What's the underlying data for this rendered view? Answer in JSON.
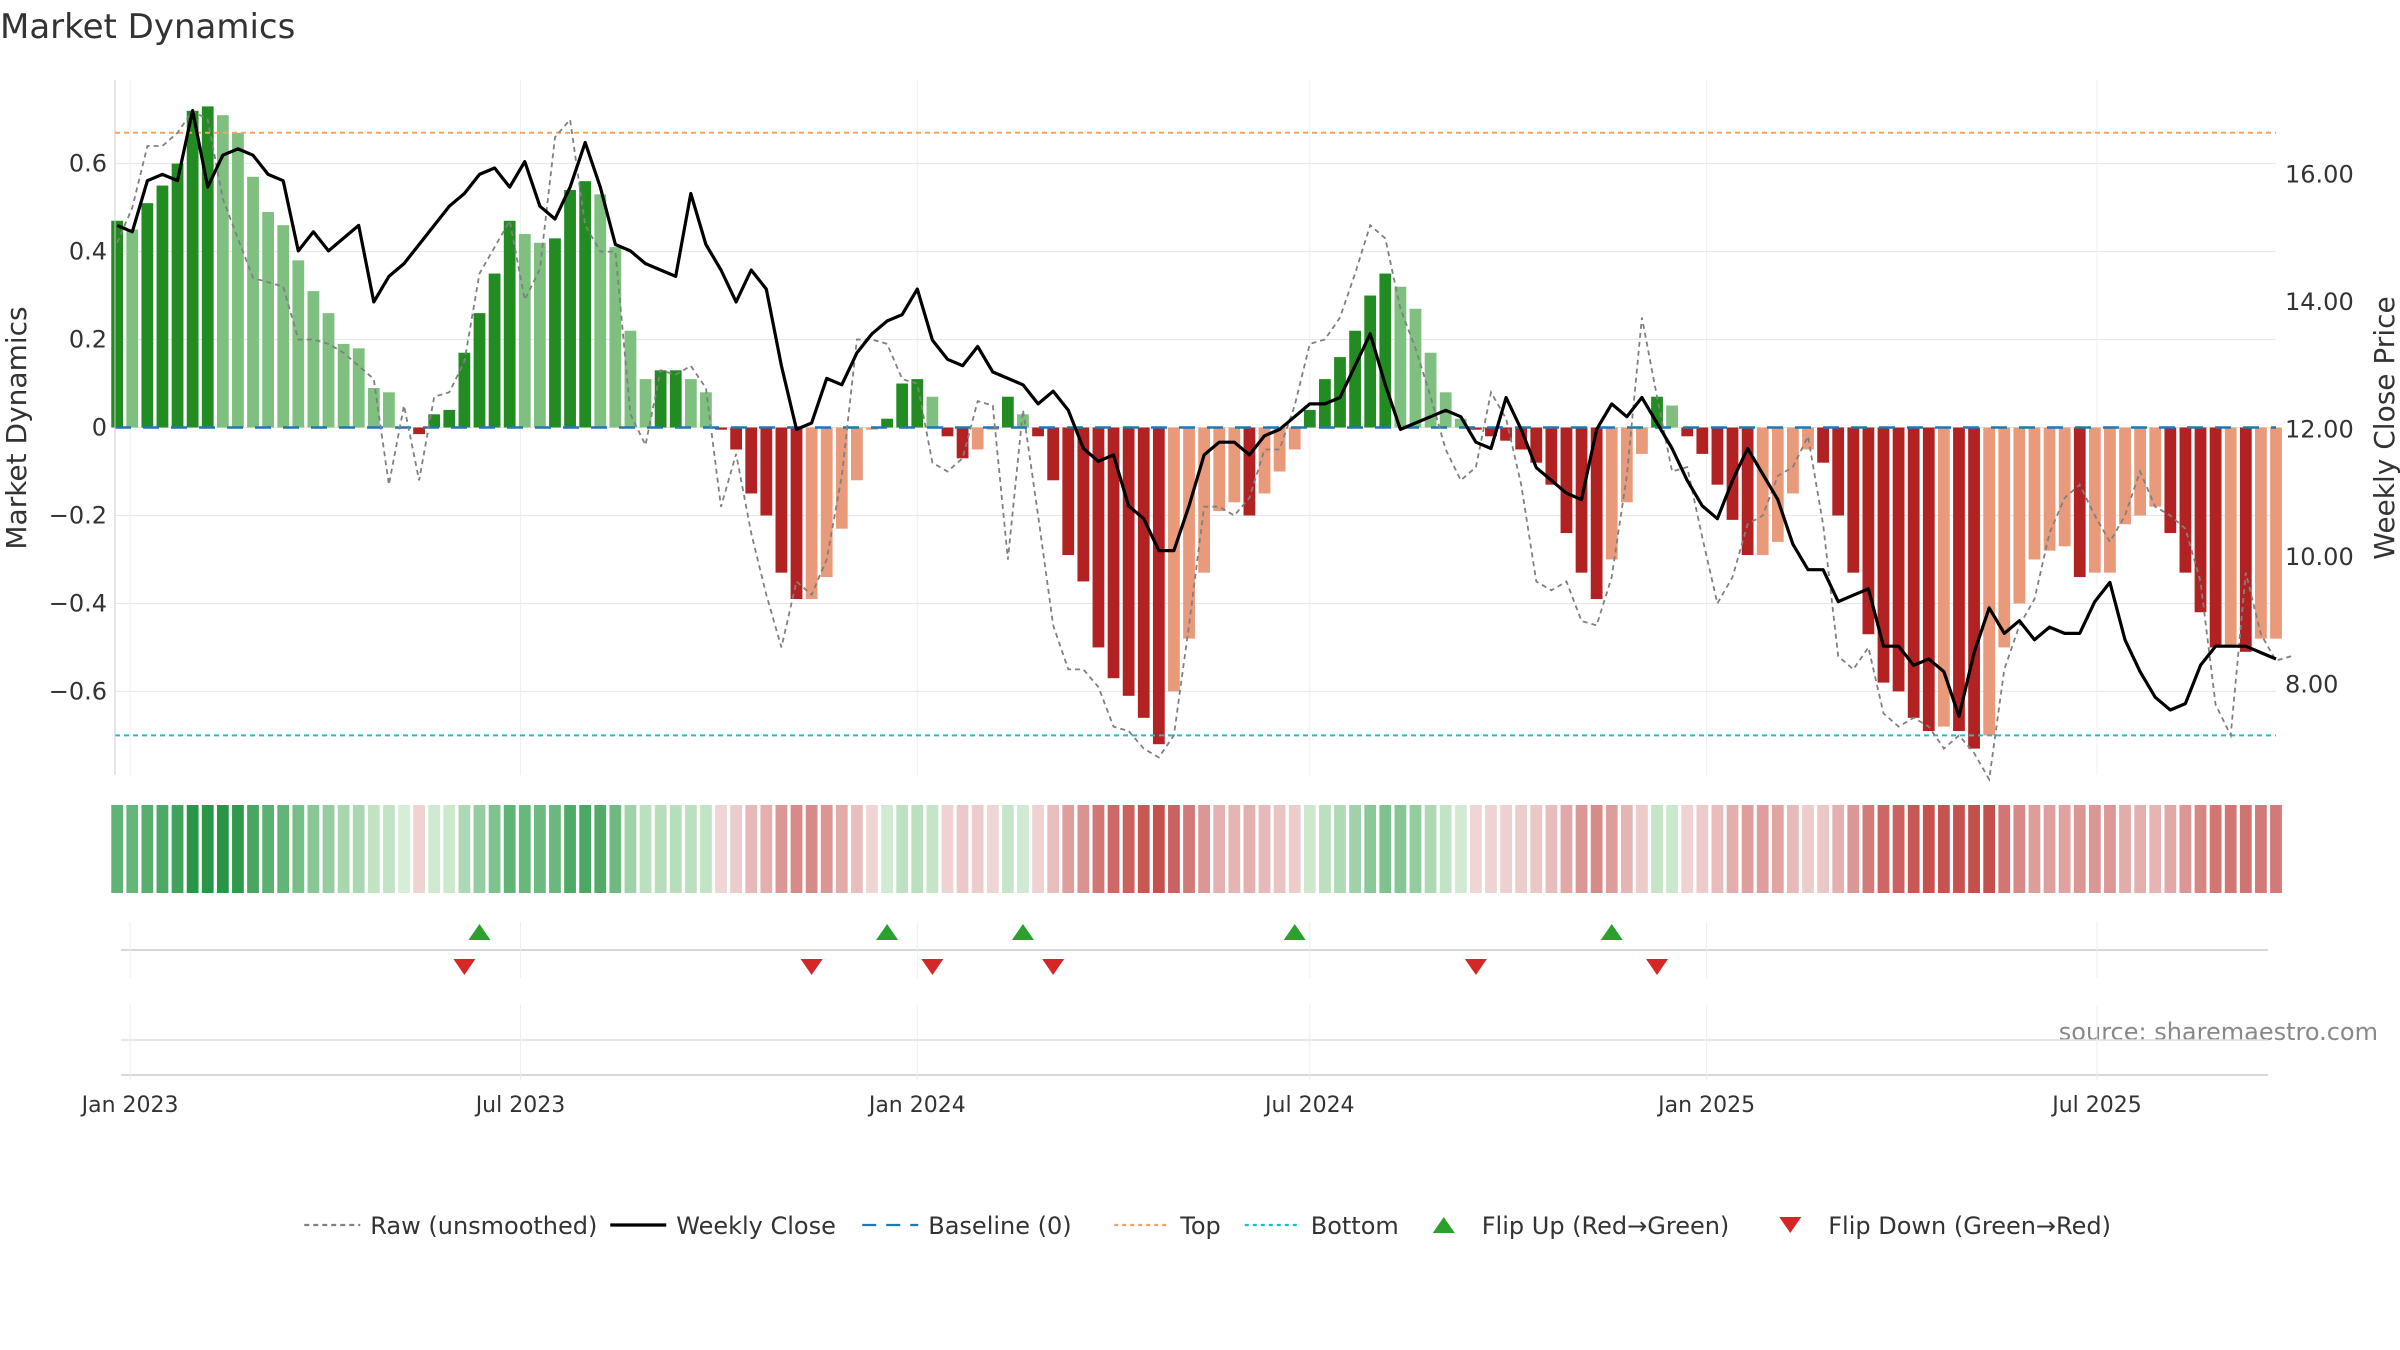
{
  "chart_data": {
    "type": "bar",
    "title": "Market Dynamics",
    "ylabel": "Market Dynamics",
    "y2label": "Weekly Close Price",
    "ylim": [
      -0.79,
      0.79
    ],
    "y2lim": [
      6.58,
      17.48
    ],
    "yticks": [
      -0.6,
      -0.4,
      -0.2,
      0,
      0.2,
      0.4,
      0.6
    ],
    "ytick_labels": [
      "−0.6",
      "−0.4",
      "−0.2",
      "0",
      "0.2",
      "0.4",
      "0.6"
    ],
    "y2ticks": [
      8,
      10,
      12,
      14,
      16
    ],
    "y2tick_labels": [
      "8.00",
      "10.00",
      "12.00",
      "14.00",
      "16.00"
    ],
    "xlim": [
      "2022-12-25",
      "2025-09-22"
    ],
    "xticks": [
      "2023-01-01",
      "2023-07-01",
      "2024-01-01",
      "2024-07-01",
      "2025-01-01",
      "2025-07-01"
    ],
    "xtick_labels": [
      "Jan 2023",
      "Jul 2023",
      "Jan 2024",
      "Jul 2024",
      "Jan 2025",
      "Jul 2025"
    ],
    "start_date": "2022-12-26",
    "top_line": 0.67,
    "bottom_line": -0.7,
    "baseline": 0,
    "grid": true,
    "legend_position": "bottom",
    "source": "source: sharemaestro.com",
    "colors": {
      "strong_up": "#228b22",
      "weak_up": "#7fbf7f",
      "strong_down": "#b22222",
      "weak_down": "#e89a7a",
      "raw_line": "#808080",
      "close_line": "#000000",
      "baseline": "#1f77b4",
      "top": "#f4a460",
      "bottom": "#20c0c0",
      "flip_up": "#2ca02c",
      "flip_down": "#d62728"
    },
    "dynamics": [
      0.47,
      0.45,
      0.51,
      0.55,
      0.6,
      0.72,
      0.73,
      0.71,
      0.67,
      0.57,
      0.49,
      0.46,
      0.38,
      0.31,
      0.26,
      0.19,
      0.18,
      0.09,
      0.08,
      0,
      -0.015,
      0.03,
      0.04,
      0.17,
      0.26,
      0.35,
      0.47,
      0.44,
      0.42,
      0.43,
      0.54,
      0.56,
      0.53,
      0.41,
      0.22,
      0.11,
      0.13,
      0.13,
      0.11,
      0.08,
      -0.005,
      -0.05,
      -0.15,
      -0.2,
      -0.33,
      -0.39,
      -0.39,
      -0.34,
      -0.23,
      -0.12,
      -0.005,
      0.02,
      0.1,
      0.11,
      0.07,
      -0.02,
      -0.07,
      -0.05,
      -0.005,
      0.07,
      0.03,
      -0.02,
      -0.12,
      -0.29,
      -0.35,
      -0.5,
      -0.57,
      -0.61,
      -0.66,
      -0.72,
      -0.6,
      -0.48,
      -0.33,
      -0.19,
      -0.17,
      -0.2,
      -0.15,
      -0.1,
      -0.05,
      0.04,
      0.11,
      0.16,
      0.22,
      0.3,
      0.35,
      0.32,
      0.27,
      0.17,
      0.08,
      0.02,
      -0.005,
      -0.02,
      -0.03,
      -0.05,
      -0.08,
      -0.13,
      -0.24,
      -0.33,
      -0.39,
      -0.3,
      -0.17,
      -0.06,
      0.07,
      0.05,
      -0.02,
      -0.06,
      -0.13,
      -0.21,
      -0.29,
      -0.29,
      -0.26,
      -0.15,
      -0.05,
      -0.08,
      -0.2,
      -0.33,
      -0.47,
      -0.58,
      -0.6,
      -0.66,
      -0.69,
      -0.68,
      -0.69,
      -0.73,
      -0.7,
      -0.5,
      -0.4,
      -0.3,
      -0.28,
      -0.27,
      -0.34,
      -0.33,
      -0.33,
      -0.22,
      -0.2,
      -0.18,
      -0.24,
      -0.33,
      -0.42,
      -0.5,
      -0.5,
      -0.51,
      -0.48,
      -0.48
    ],
    "raw": [
      0.42,
      0.5,
      0.64,
      0.64,
      0.67,
      0.72,
      0.7,
      0.52,
      0.43,
      0.34,
      0.33,
      0.32,
      0.2,
      0.2,
      0.19,
      0.17,
      0.14,
      0.11,
      -0.13,
      0.05,
      -0.12,
      0.07,
      0.08,
      0.15,
      0.35,
      0.41,
      0.47,
      0.29,
      0.36,
      0.66,
      0.7,
      0.46,
      0.4,
      0.4,
      0.03,
      -0.04,
      0.13,
      0.12,
      0.14,
      0.09,
      -0.18,
      -0.06,
      -0.24,
      -0.38,
      -0.5,
      -0.35,
      -0.38,
      -0.3,
      -0.11,
      0.2,
      0.2,
      0.19,
      0.11,
      0.1,
      -0.08,
      -0.1,
      -0.07,
      0.06,
      0.05,
      -0.3,
      0.04,
      -0.2,
      -0.45,
      -0.55,
      -0.55,
      -0.59,
      -0.68,
      -0.69,
      -0.73,
      -0.75,
      -0.7,
      -0.45,
      -0.18,
      -0.18,
      -0.2,
      -0.16,
      -0.05,
      -0.05,
      0.05,
      0.19,
      0.2,
      0.25,
      0.35,
      0.46,
      0.43,
      0.27,
      0.18,
      0.07,
      -0.05,
      -0.12,
      -0.09,
      0.08,
      0.02,
      -0.13,
      -0.35,
      -0.37,
      -0.35,
      -0.44,
      -0.45,
      -0.34,
      -0.11,
      0.25,
      0.07,
      -0.1,
      -0.09,
      -0.25,
      -0.4,
      -0.34,
      -0.22,
      -0.2,
      -0.11,
      -0.09,
      -0.02,
      -0.22,
      -0.52,
      -0.55,
      -0.5,
      -0.65,
      -0.68,
      -0.66,
      -0.68,
      -0.73,
      -0.7,
      -0.74,
      -0.8,
      -0.55,
      -0.45,
      -0.39,
      -0.24,
      -0.16,
      -0.13,
      -0.2,
      -0.26,
      -0.2,
      -0.1,
      -0.18,
      -0.2,
      -0.23,
      -0.35,
      -0.63,
      -0.7,
      -0.33,
      -0.47,
      -0.53,
      -0.52
    ],
    "close": [
      15.2,
      15.1,
      15.9,
      16.0,
      15.9,
      17.0,
      15.8,
      16.3,
      16.4,
      16.3,
      16.0,
      15.9,
      14.8,
      15.1,
      14.8,
      15.0,
      15.2,
      14.0,
      14.4,
      14.6,
      14.9,
      15.2,
      15.5,
      15.7,
      16.0,
      16.1,
      15.8,
      16.2,
      15.5,
      15.3,
      15.8,
      16.5,
      15.8,
      14.9,
      14.8,
      14.6,
      14.5,
      14.4,
      15.7,
      14.9,
      14.5,
      14.0,
      14.5,
      14.2,
      13.0,
      12.0,
      12.1,
      12.8,
      12.7,
      13.2,
      13.5,
      13.7,
      13.8,
      14.2,
      13.4,
      13.1,
      13.0,
      13.3,
      12.9,
      12.8,
      12.7,
      12.4,
      12.6,
      12.3,
      11.7,
      11.5,
      11.6,
      10.8,
      10.6,
      10.1,
      10.1,
      10.8,
      11.6,
      11.8,
      11.8,
      11.6,
      11.9,
      12.0,
      12.2,
      12.4,
      12.4,
      12.5,
      13.0,
      13.5,
      12.7,
      12.0,
      12.1,
      12.2,
      12.3,
      12.2,
      11.8,
      11.7,
      12.5,
      12.0,
      11.4,
      11.2,
      11.0,
      10.9,
      12.0,
      12.4,
      12.2,
      12.5,
      12.1,
      11.7,
      11.2,
      10.8,
      10.6,
      11.2,
      11.7,
      11.3,
      10.9,
      10.2,
      9.8,
      9.8,
      9.3,
      9.4,
      9.5,
      8.6,
      8.6,
      8.3,
      8.4,
      8.2,
      7.5,
      8.5,
      9.2,
      8.8,
      9.0,
      8.7,
      8.9,
      8.8,
      8.8,
      9.3,
      9.6,
      8.7,
      8.2,
      7.8,
      7.6,
      7.7,
      8.3,
      8.6,
      8.6,
      8.6,
      8.5,
      8.4
    ],
    "flip_up": [
      "2023-06-12",
      "2023-12-18",
      "2024-02-19",
      "2024-06-24",
      "2024-11-18"
    ],
    "flip_down": [
      "2023-06-05",
      "2023-11-13",
      "2024-01-08",
      "2024-03-04",
      "2024-09-16",
      "2024-12-09"
    ],
    "legend": [
      {
        "label": "Raw (unsmoothed)",
        "kind": "line-dashed",
        "color": "#808080"
      },
      {
        "label": "Weekly Close",
        "kind": "line",
        "color": "#000000"
      },
      {
        "label": "Baseline (0)",
        "kind": "line-dash-long",
        "color": "#1f77b4"
      },
      {
        "label": "Top",
        "kind": "line-dotted",
        "color": "#f4a460"
      },
      {
        "label": "Bottom",
        "kind": "line-dotted",
        "color": "#20c0c0"
      },
      {
        "label": "Flip Up (Red→Green)",
        "kind": "tri-up",
        "color": "#2ca02c"
      },
      {
        "label": "Flip Down (Green→Red)",
        "kind": "tri-down",
        "color": "#d62728"
      }
    ]
  }
}
